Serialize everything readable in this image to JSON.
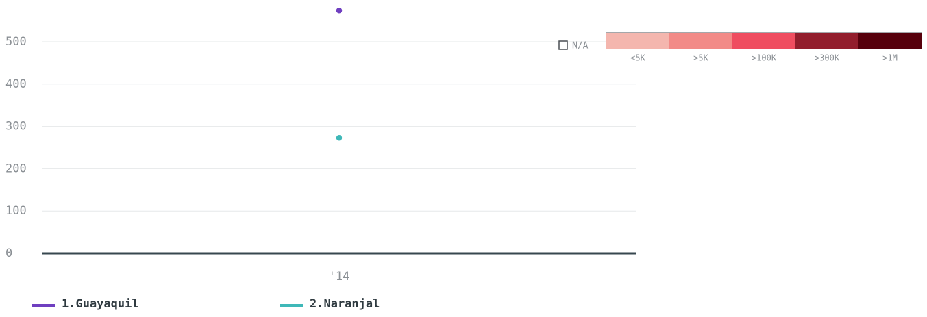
{
  "chart_data": {
    "type": "line",
    "categories": [
      "'14"
    ],
    "series": [
      {
        "name": "1.Guayaquil",
        "color": "#6f3fc0",
        "values": [
          574
        ]
      },
      {
        "name": "2.Naranjal",
        "color": "#3fb8b8",
        "values": [
          273
        ]
      }
    ],
    "ylim": [
      0,
      600
    ],
    "yticks": [
      0,
      100,
      200,
      300,
      400,
      500
    ],
    "grid": true,
    "color_scale": {
      "na_label": "N/A",
      "bins": [
        {
          "label": "<5K",
          "color": "#f4b6ae"
        },
        {
          "label": ">5K",
          "color": "#f28a87"
        },
        {
          "label": ">100K",
          "color": "#ef4d60"
        },
        {
          "label": ">300K",
          "color": "#921d2c"
        },
        {
          "label": ">1M",
          "color": "#57000c"
        }
      ]
    }
  }
}
